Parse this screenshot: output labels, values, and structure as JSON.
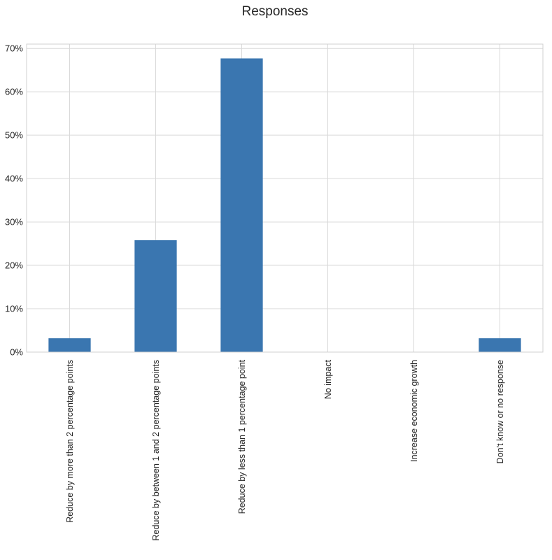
{
  "chart_data": {
    "type": "bar",
    "title": "Responses",
    "xlabel": "",
    "ylabel": "",
    "categories": [
      "Reduce by more than 2 percentage points",
      "Reduce by between 1 and 2 percentage points",
      "Reduce by less than 1 percentage point",
      "No impact",
      "Increase economic growth",
      "Don't know or no response"
    ],
    "values": [
      3.2,
      25.8,
      67.7,
      0,
      0,
      3.2
    ],
    "ylim": [
      0,
      71
    ],
    "yticks": [
      "0%",
      "10%",
      "20%",
      "30%",
      "40%",
      "50%",
      "60%",
      "70%"
    ],
    "ytick_values": [
      0,
      10,
      20,
      30,
      40,
      50,
      60,
      70
    ],
    "grid": true,
    "legend": "none",
    "bar_color": "#3a76b0",
    "grid_color": "#d9d9d9"
  }
}
